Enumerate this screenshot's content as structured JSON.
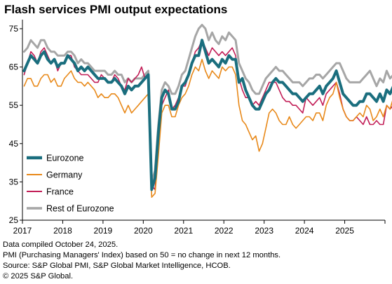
{
  "title": "Flash services PMI output expectations",
  "footnotes": [
    "Data compiled October 24, 2025.",
    "PMI (Purchasing Managers' Index) based on 50 = no change in next 12 months.",
    "Source: S&P Global PMI, S&P Global Market Intelligence, HCOB.",
    "© 2025 S&P Global."
  ],
  "chart_data": {
    "type": "line",
    "title": "Flash services PMI output expectations",
    "xlabel": "",
    "ylabel": "",
    "ylim": [
      25,
      77
    ],
    "yticks": [
      25,
      35,
      45,
      55,
      65,
      75
    ],
    "xticks": [
      "2017",
      "2018",
      "2019",
      "2020",
      "2021",
      "2022",
      "2023",
      "2024",
      "2025"
    ],
    "x_start": "2017-01",
    "x_frequency": "monthly",
    "grid": "off",
    "legend_position": "bottom-left",
    "series": [
      {
        "name": "Eurozone",
        "color": "#1a6e7e",
        "values": [
          64,
          66,
          68,
          67,
          66,
          68,
          69,
          67,
          66,
          67,
          65,
          66,
          66,
          68,
          67,
          66,
          64,
          65,
          64,
          65,
          64,
          63,
          62,
          62,
          62,
          61,
          61,
          62,
          61,
          60,
          58,
          60,
          59,
          60,
          60,
          61,
          62,
          63,
          33,
          36,
          48,
          57,
          59,
          58,
          54,
          54,
          56,
          60,
          61,
          63,
          66,
          68,
          68,
          72,
          69,
          66,
          67,
          66,
          65,
          67,
          66,
          68,
          67,
          67,
          61,
          62,
          59,
          57,
          55,
          54,
          54,
          56,
          58,
          59,
          61,
          62,
          61,
          61,
          60,
          59,
          58,
          58,
          57,
          56,
          57,
          58,
          58,
          59,
          60,
          58,
          60,
          61,
          62,
          64,
          61,
          58,
          57,
          56,
          55,
          55,
          56,
          56,
          58,
          58,
          57,
          56,
          58,
          56,
          59,
          58,
          60,
          58
        ],
        "values_through": "2025-10"
      },
      {
        "name": "Germany",
        "color": "#e8891a",
        "values": [
          60,
          62,
          62,
          60,
          60,
          62,
          63,
          63,
          61,
          62,
          60,
          60,
          62,
          63,
          64,
          62,
          61,
          61,
          60,
          61,
          60,
          59,
          57,
          58,
          57,
          57,
          58,
          58,
          57,
          55,
          53,
          55,
          53,
          54,
          55,
          56,
          57,
          58,
          31,
          32,
          42,
          53,
          55,
          55,
          52,
          52,
          55,
          57,
          58,
          60,
          63,
          65,
          64,
          67,
          64,
          62,
          64,
          63,
          62,
          65,
          64,
          65,
          65,
          63,
          55,
          51,
          50,
          48,
          46,
          47,
          43,
          45,
          49,
          53,
          54,
          53,
          51,
          50,
          50,
          52,
          50,
          49,
          50,
          51,
          52,
          52,
          51,
          53,
          53,
          51,
          55,
          57,
          58,
          61,
          57,
          54,
          52,
          51,
          51,
          52,
          53,
          52,
          55,
          54,
          51,
          52,
          54,
          52,
          55,
          54,
          57,
          55
        ],
        "values_through": "2025-10"
      },
      {
        "name": "France",
        "color": "#c21e57",
        "values": [
          63,
          66,
          69,
          68,
          66,
          69,
          70,
          68,
          66,
          67,
          64,
          66,
          66,
          68,
          68,
          65,
          64,
          63,
          63,
          63,
          62,
          61,
          61,
          63,
          62,
          61,
          61,
          63,
          62,
          60,
          59,
          62,
          61,
          62,
          63,
          65,
          62,
          63,
          34,
          33,
          45,
          55,
          57,
          59,
          54,
          55,
          57,
          60,
          60,
          63,
          66,
          69,
          70,
          72,
          70,
          68,
          70,
          69,
          68,
          69,
          68,
          69,
          70,
          68,
          62,
          59,
          57,
          57,
          55,
          56,
          55,
          57,
          59,
          61,
          61,
          61,
          59,
          57,
          56,
          56,
          55,
          55,
          54,
          53,
          57,
          56,
          55,
          56,
          57,
          55,
          58,
          59,
          60,
          61,
          58,
          54,
          52,
          51,
          51,
          52,
          51,
          50,
          52,
          50,
          50,
          51,
          50,
          50,
          55,
          54,
          55,
          53
        ],
        "values_through": "2025-10"
      },
      {
        "name": "Rest of Eurozone",
        "color": "#a6a6a6",
        "values": [
          69,
          70,
          72,
          71,
          70,
          72,
          72,
          70,
          69,
          69,
          68,
          68,
          68,
          69,
          69,
          68,
          66,
          67,
          66,
          66,
          65,
          64,
          64,
          64,
          64,
          63,
          63,
          64,
          63,
          63,
          61,
          62,
          61,
          62,
          62,
          62,
          63,
          64,
          35,
          38,
          50,
          59,
          61,
          60,
          58,
          58,
          60,
          63,
          64,
          67,
          70,
          73,
          75,
          76,
          75,
          72,
          74,
          72,
          71,
          73,
          72,
          74,
          73,
          72,
          66,
          64,
          62,
          61,
          59,
          58,
          58,
          60,
          62,
          63,
          64,
          65,
          64,
          64,
          63,
          62,
          61,
          61,
          61,
          60,
          61,
          62,
          62,
          63,
          63,
          62,
          63,
          64,
          65,
          66,
          66,
          64,
          62,
          61,
          61,
          61,
          61,
          62,
          63,
          64,
          62,
          60,
          62,
          61,
          64,
          62,
          63,
          63
        ],
        "values_through": "2025-10"
      }
    ]
  }
}
